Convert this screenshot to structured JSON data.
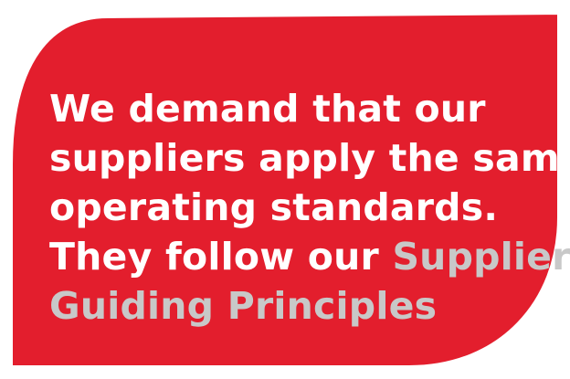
{
  "panel": {
    "fill_color": "#e31e2d",
    "border_color": "#ffffff",
    "link_color": "#c8c8c8"
  },
  "quote": {
    "line1": "We demand that our",
    "line2": "suppliers apply the same",
    "line3": "operating standards.",
    "line4_prefix": "They follow our ",
    "link_part1": "Supplier",
    "link_part2": "Guiding Principles"
  }
}
